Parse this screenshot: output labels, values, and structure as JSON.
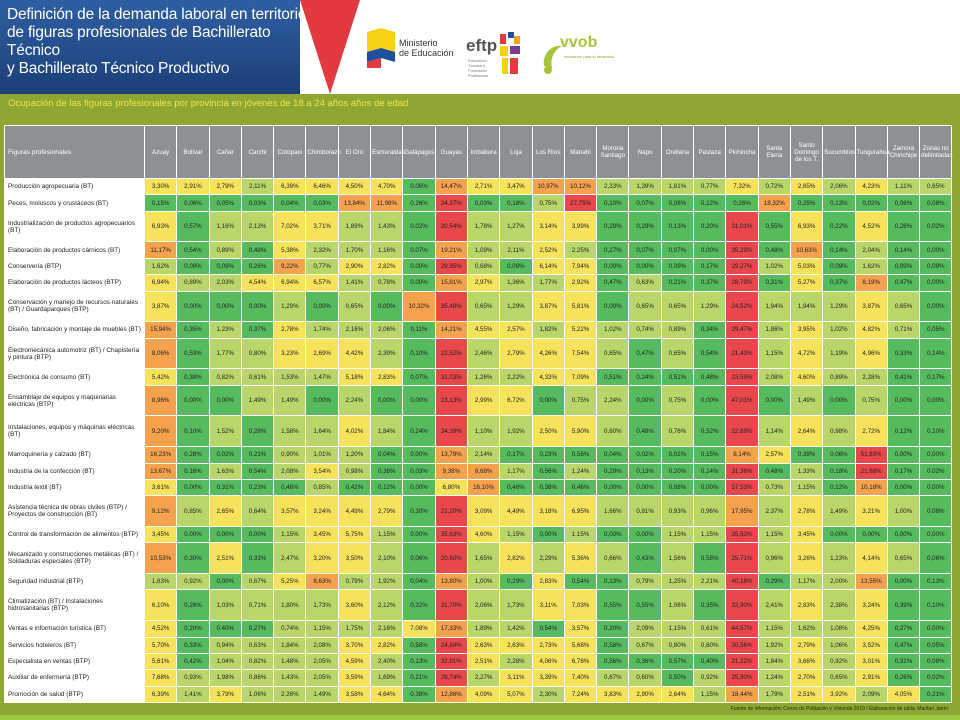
{
  "header": {
    "title_lines": [
      "Definición de la demanda laboral en territorio",
      "de figuras profesionales de Bachillerato Técnico",
      "y Bachillerato Técnico Productivo"
    ],
    "logo_ministerio_line1": "Ministerio",
    "logo_ministerio_line2": "de Educación",
    "logo_eftp": "eftp",
    "logo_eftp_sub": "Educación Técnica y Formación Profesional",
    "logo_vvob": "vvob",
    "logo_vvob_sub": "educación para el desarrollo"
  },
  "subtitle": "Ocupación de las figuras profesionales por provincia en jóvenes de 18 a 24 años años de edad",
  "footer": "Fuente de información: Censo de Población y Vivienda 2010 / Elaboración de tabla: Maribel Jarrín",
  "table": {
    "corner": "Figuras profesionales",
    "columns": [
      "Azuay",
      "Bolívar",
      "Cañar",
      "Carchi",
      "Cotopaxi",
      "Chimborazo",
      "El Oro",
      "Esmeraldas",
      "Galápagos",
      "Guayas",
      "Imbabura",
      "Loja",
      "Los Ríos",
      "Manabí",
      "Morona Santiago",
      "Napo",
      "Orellana",
      "Pastaza",
      "Pichincha",
      "Santa Elena",
      "Santo Domingo de los T.",
      "Sucumbíos",
      "Tungurahua",
      "Zamora Chinchipe",
      "Zonas no delimitadas"
    ],
    "rows": [
      {
        "label": "Producción agropecuaria (BT)",
        "values": [
          "3,30%",
          "2,91%",
          "2,79%",
          "2,11%",
          "6,39%",
          "6,46%",
          "4,50%",
          "4,70%",
          "0,06%",
          "14,47%",
          "2,71%",
          "3,47%",
          "10,97%",
          "10,12%",
          "2,33%",
          "1,39%",
          "1,81%",
          "0,77%",
          "7,32%",
          "0,72%",
          "2,65%",
          "2,06%",
          "4,23%",
          "1,11%",
          "0,65%"
        ]
      },
      {
        "label": "Peces, moluscos y crustáceos (BT)",
        "values": [
          "0,15%",
          "0,06%",
          "0,05%",
          "0,03%",
          "0,04%",
          "0,03%",
          "13,84%",
          "11,98%",
          "0,26%",
          "24,37%",
          "0,03%",
          "0,18%",
          "0,75%",
          "27,75%",
          "0,10%",
          "0,07%",
          "0,08%",
          "0,12%",
          "0,26%",
          "18,32%",
          "0,25%",
          "0,13%",
          "0,02%",
          "0,06%",
          "0,08%"
        ]
      },
      {
        "label": "Industrialización de productos agropecuarios (BT)",
        "values": [
          "6,93%",
          "0,57%",
          "1,16%",
          "2,13%",
          "7,02%",
          "3,71%",
          "1,89%",
          "1,43%",
          "0,02%",
          "20,54%",
          "1,78%",
          "1,27%",
          "3,14%",
          "3,99%",
          "0,29%",
          "0,29%",
          "0,13%",
          "0,20%",
          "31,01%",
          "0,55%",
          "6,93%",
          "0,22%",
          "4,52%",
          "0,26%",
          "0,02%"
        ]
      },
      {
        "label": "Elaboración de productos cárnicos (BT)",
        "values": [
          "11,17%",
          "0,54%",
          "0,89%",
          "0,48%",
          "5,38%",
          "2,32%",
          "1,70%",
          "1,16%",
          "0,07%",
          "19,21%",
          "1,09%",
          "2,11%",
          "2,52%",
          "2,25%",
          "0,27%",
          "0,07%",
          "0,07%",
          "0,00%",
          "35,29%",
          "0,48%",
          "10,63%",
          "0,14%",
          "2,04%",
          "0,14%",
          "0,00%"
        ]
      },
      {
        "label": "Conservería (BTP)",
        "values": [
          "1,62%",
          "0,09%",
          "0,09%",
          "0,26%",
          "9,22%",
          "0,77%",
          "2,90%",
          "2,82%",
          "0,00%",
          "29,95%",
          "0,68%",
          "0,09%",
          "6,14%",
          "7,94%",
          "0,00%",
          "0,00%",
          "0,09%",
          "0,17%",
          "29,27%",
          "1,02%",
          "5,03%",
          "0,09%",
          "1,62%",
          "0,09%",
          "0,09%"
        ]
      },
      {
        "label": "Elaboración de productos lácteos (BTP)",
        "values": [
          "6,94%",
          "0,89%",
          "2,03%",
          "4,54%",
          "6,94%",
          "6,57%",
          "1,41%",
          "0,78%",
          "0,00%",
          "15,81%",
          "2,97%",
          "1,36%",
          "1,77%",
          "2,92%",
          "0,47%",
          "0,63%",
          "0,21%",
          "0,37%",
          "28,79%",
          "0,31%",
          "5,27%",
          "0,37%",
          "8,19%",
          "0,47%",
          "0,00%"
        ]
      },
      {
        "label": "Conservación y manejo de recursos naturales (BT) / Guardaparques (BTP)",
        "values": [
          "3,87%",
          "0,00%",
          "0,00%",
          "0,00%",
          "1,29%",
          "0,00%",
          "0,65%",
          "0,00%",
          "10,32%",
          "35,48%",
          "0,65%",
          "1,29%",
          "3,87%",
          "5,81%",
          "0,00%",
          "0,65%",
          "0,65%",
          "1,29%",
          "24,52%",
          "1,94%",
          "1,94%",
          "1,29%",
          "3,87%",
          "0,65%",
          "0,00%"
        ]
      },
      {
        "label": "Diseño, fabricación y montaje de muebles (BT)",
        "values": [
          "15,94%",
          "0,35%",
          "1,23%",
          "0,37%",
          "2,78%",
          "1,74%",
          "2,16%",
          "2,06%",
          "0,11%",
          "14,21%",
          "4,55%",
          "2,57%",
          "1,82%",
          "5,22%",
          "1,02%",
          "0,74%",
          "0,89%",
          "0,34%",
          "29,47%",
          "1,86%",
          "3,95%",
          "1,02%",
          "4,82%",
          "0,71%",
          "0,05%"
        ]
      },
      {
        "label": "Electromecánica automotriz (BT) / Chapistería y pintura (BTP)",
        "values": [
          "8,06%",
          "0,53%",
          "1,77%",
          "0,80%",
          "3,23%",
          "2,69%",
          "4,42%",
          "2,39%",
          "0,10%",
          "22,52%",
          "2,46%",
          "2,79%",
          "4,26%",
          "7,54%",
          "0,65%",
          "0,47%",
          "0,65%",
          "0,54%",
          "21,43%",
          "1,15%",
          "4,72%",
          "1,19%",
          "4,96%",
          "0,33%",
          "0,14%"
        ]
      },
      {
        "label": "Electrónica de consumo (BT)",
        "values": [
          "5,42%",
          "0,38%",
          "0,82%",
          "0,61%",
          "1,53%",
          "1,47%",
          "5,18%",
          "2,83%",
          "0,07%",
          "31,03%",
          "1,26%",
          "2,22%",
          "4,33%",
          "7,09%",
          "0,51%",
          "0,24%",
          "0,51%",
          "0,48%",
          "23,59%",
          "2,08%",
          "4,60%",
          "0,89%",
          "2,28%",
          "0,41%",
          "0,17%"
        ]
      },
      {
        "label": "Ensamblaje de equipos y maquinarias eléctricas (BTP)",
        "values": [
          "8,96%",
          "0,00%",
          "0,00%",
          "1,49%",
          "1,49%",
          "0,00%",
          "2,24%",
          "0,00%",
          "0,00%",
          "23,13%",
          "2,99%",
          "6,72%",
          "0,00%",
          "0,75%",
          "2,24%",
          "0,00%",
          "0,75%",
          "0,00%",
          "47,01%",
          "0,00%",
          "1,49%",
          "0,00%",
          "0,75%",
          "0,00%",
          "0,00%"
        ]
      },
      {
        "label": "Instalaciones, equipos y máquinas eléctricas (BT)",
        "values": [
          "9,20%",
          "0,10%",
          "1,52%",
          "0,28%",
          "1,58%",
          "1,64%",
          "4,02%",
          "1,84%",
          "0,24%",
          "34,39%",
          "1,10%",
          "1,92%",
          "2,50%",
          "5,90%",
          "0,60%",
          "0,48%",
          "0,76%",
          "0,52%",
          "22,69%",
          "1,14%",
          "2,64%",
          "0,98%",
          "2,72%",
          "0,12%",
          "0,10%"
        ]
      },
      {
        "label": "Marroquinería y calzado (BT)",
        "values": [
          "16,23%",
          "0,28%",
          "0,02%",
          "0,21%",
          "0,90%",
          "1,01%",
          "1,20%",
          "0,04%",
          "0,00%",
          "13,79%",
          "2,14%",
          "0,17%",
          "0,23%",
          "0,56%",
          "0,04%",
          "0,02%",
          "0,02%",
          "0,15%",
          "8,14%",
          "2,57%",
          "0,39%",
          "0,06%",
          "51,83%",
          "0,00%",
          "0,00%"
        ]
      },
      {
        "label": "Industria de la confección (BT)",
        "values": [
          "13,67%",
          "0,16%",
          "1,63%",
          "0,54%",
          "2,08%",
          "3,54%",
          "0,98%",
          "0,36%",
          "0,03%",
          "9,38%",
          "8,68%",
          "1,17%",
          "0,56%",
          "1,24%",
          "0,29%",
          "0,13%",
          "0,20%",
          "0,14%",
          "31,36%",
          "0,48%",
          "1,33%",
          "0,18%",
          "21,68%",
          "0,17%",
          "0,02%"
        ]
      },
      {
        "label": "Industria textil (BT)",
        "values": [
          "3,61%",
          "0,00%",
          "0,31%",
          "0,23%",
          "0,46%",
          "0,85%",
          "0,42%",
          "0,12%",
          "0,00%",
          "6,80%",
          "16,10%",
          "0,46%",
          "0,38%",
          "0,46%",
          "0,00%",
          "0,00%",
          "0,08%",
          "0,00%",
          "57,53%",
          "0,73%",
          "1,15%",
          "0,12%",
          "10,18%",
          "0,00%",
          "0,00%"
        ]
      },
      {
        "label": "Asistencia técnica de obras civiles (BTP) / Proyectos de construcción (BT)",
        "values": [
          "9,12%",
          "0,85%",
          "2,65%",
          "0,64%",
          "3,57%",
          "3,24%",
          "4,49%",
          "2,79%",
          "0,30%",
          "21,20%",
          "3,09%",
          "4,49%",
          "3,18%",
          "6,95%",
          "1,66%",
          "0,81%",
          "0,93%",
          "0,96%",
          "17,95%",
          "2,37%",
          "2,78%",
          "1,49%",
          "3,21%",
          "1,00%",
          "0,08%"
        ]
      },
      {
        "label": "Control de transformación de alimentos (BTP)",
        "values": [
          "3,45%",
          "0,00%",
          "0,00%",
          "0,00%",
          "1,15%",
          "3,45%",
          "5,75%",
          "1,15%",
          "0,00%",
          "35,63%",
          "4,60%",
          "1,15%",
          "0,00%",
          "1,15%",
          "0,00%",
          "0,00%",
          "1,15%",
          "1,15%",
          "35,63%",
          "1,15%",
          "3,45%",
          "0,00%",
          "0,00%",
          "0,00%",
          "0,00%"
        ]
      },
      {
        "label": "Mecanizado y construcciones metálicas (BT) / Soldaduras especiales (BTP)",
        "values": [
          "10,53%",
          "0,30%",
          "2,51%",
          "0,33%",
          "2,47%",
          "3,20%",
          "3,50%",
          "2,10%",
          "0,06%",
          "20,60%",
          "1,65%",
          "2,82%",
          "2,29%",
          "5,36%",
          "0,66%",
          "0,43%",
          "1,56%",
          "0,58%",
          "25,71%",
          "0,96%",
          "3,26%",
          "1,23%",
          "4,14%",
          "0,65%",
          "0,06%"
        ]
      },
      {
        "label": "Seguridad industrial (BTP)",
        "values": [
          "1,63%",
          "0,92%",
          "0,00%",
          "0,67%",
          "5,25%",
          "8,63%",
          "0,79%",
          "1,92%",
          "0,04%",
          "13,80%",
          "1,00%",
          "0,29%",
          "2,83%",
          "0,54%",
          "0,13%",
          "0,79%",
          "1,25%",
          "2,21%",
          "40,18%",
          "0,29%",
          "1,17%",
          "2,00%",
          "13,55%",
          "0,00%",
          "0,13%"
        ]
      },
      {
        "label": "Climatización (BT) / Instalaciones hidrosanitarias (BTP)",
        "values": [
          "6,10%",
          "0,26%",
          "1,03%",
          "0,71%",
          "1,80%",
          "1,73%",
          "3,60%",
          "2,12%",
          "0,32%",
          "31,70%",
          "2,06%",
          "1,73%",
          "3,11%",
          "7,03%",
          "0,55%",
          "0,55%",
          "1,06%",
          "0,35%",
          "22,90%",
          "2,41%",
          "2,83%",
          "2,38%",
          "3,24%",
          "0,39%",
          "0,10%"
        ]
      },
      {
        "label": "Ventas e información turística (BT)",
        "values": [
          "4,52%",
          "0,20%",
          "0,40%",
          "0,27%",
          "0,74%",
          "1,15%",
          "1,75%",
          "2,16%",
          "7,08%",
          "17,33%",
          "1,89%",
          "1,42%",
          "0,54%",
          "3,57%",
          "0,20%",
          "2,09%",
          "1,15%",
          "0,61%",
          "44,57%",
          "1,15%",
          "1,62%",
          "1,08%",
          "4,25%",
          "0,27%",
          "0,00%"
        ]
      },
      {
        "label": "Servicios hoteleros (BT)",
        "values": [
          "5,70%",
          "0,33%",
          "0,94%",
          "0,63%",
          "1,84%",
          "2,08%",
          "3,70%",
          "2,82%",
          "0,58%",
          "24,69%",
          "2,63%",
          "2,63%",
          "2,73%",
          "5,68%",
          "0,58%",
          "0,67%",
          "0,80%",
          "0,60%",
          "30,56%",
          "1,92%",
          "2,79%",
          "1,06%",
          "3,52%",
          "0,47%",
          "0,05%"
        ]
      },
      {
        "label": "Especialista en ventas (BTP)",
        "values": [
          "5,61%",
          "0,42%",
          "1,04%",
          "0,82%",
          "1,48%",
          "2,05%",
          "4,59%",
          "2,40%",
          "0,13%",
          "32,91%",
          "2,51%",
          "2,28%",
          "4,06%",
          "6,78%",
          "0,56%",
          "0,36%",
          "0,57%",
          "0,40%",
          "21,22%",
          "1,84%",
          "3,66%",
          "0,92%",
          "3,01%",
          "0,31%",
          "0,08%"
        ]
      },
      {
        "label": "Auxiliar de enfermería (BTP)",
        "values": [
          "7,68%",
          "0,93%",
          "1,98%",
          "0,86%",
          "1,43%",
          "2,05%",
          "3,59%",
          "1,69%",
          "0,21%",
          "26,74%",
          "2,27%",
          "3,11%",
          "3,39%",
          "7,40%",
          "0,67%",
          "0,60%",
          "0,50%",
          "0,92%",
          "25,90%",
          "1,24%",
          "2,70%",
          "0,65%",
          "2,91%",
          "0,26%",
          "0,02%"
        ]
      },
      {
        "label": "Promoción de salud (BTP)",
        "values": [
          "6,39%",
          "1,41%",
          "3,79%",
          "1,06%",
          "2,26%",
          "1,49%",
          "3,58%",
          "4,64%",
          "0,38%",
          "12,86%",
          "4,09%",
          "5,07%",
          "2,30%",
          "7,24%",
          "3,83%",
          "2,90%",
          "2,64%",
          "1,15%",
          "18,44%",
          "1,79%",
          "2,51%",
          "3,92%",
          "2,09%",
          "4,05%",
          "0,21%"
        ]
      }
    ]
  },
  "colors": {
    "red": "#e8474c",
    "orange": "#f5a24e",
    "yellow": "#f7e25b",
    "lightgreen": "#b9d66a",
    "green": "#55bb5e"
  }
}
